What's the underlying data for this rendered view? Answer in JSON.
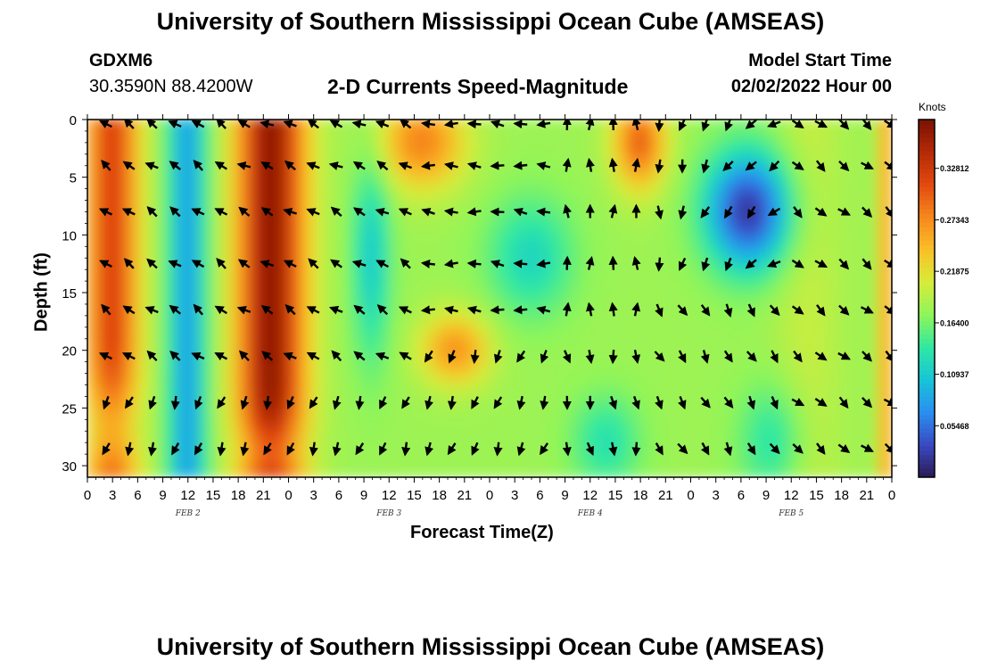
{
  "page": {
    "title_top": "University of Southern Mississippi Ocean Cube (AMSEAS)",
    "title_bottom": "University of Southern Mississippi Ocean Cube (AMSEAS)",
    "station_id": "GDXM6",
    "location": "30.3590N  88.4200W",
    "plot_title": "2-D Currents Speed-Magnitude",
    "model_start_label": "Model Start Time",
    "model_start_value": "02/02/2022 Hour 00"
  },
  "chart_data": {
    "type": "heatmap",
    "title": "2-D Currents Speed-Magnitude",
    "xlabel": "Forecast Time(Z)",
    "ylabel": "Depth (ft)",
    "x_ticks": [
      "0",
      "3",
      "6",
      "9",
      "12",
      "15",
      "18",
      "21",
      "0",
      "3",
      "6",
      "9",
      "12",
      "15",
      "18",
      "21",
      "0",
      "3",
      "6",
      "9",
      "12",
      "15",
      "18",
      "21",
      "0",
      "3",
      "6",
      "9",
      "12",
      "15",
      "18",
      "21",
      "0"
    ],
    "x_range_hours": [
      0,
      96
    ],
    "day_labels": [
      {
        "label": "FEB 2",
        "hour": 12
      },
      {
        "label": "FEB 3",
        "hour": 36
      },
      {
        "label": "FEB 4",
        "hour": 60
      },
      {
        "label": "FEB 5",
        "hour": 84
      }
    ],
    "y_ticks": [
      0,
      5,
      10,
      15,
      20,
      25,
      30
    ],
    "y_range_ft": [
      0,
      31
    ],
    "arrow_depths_ft": [
      0,
      4,
      8,
      12.5,
      16.5,
      20.5,
      24.5,
      28.5
    ],
    "colorbar": {
      "unit": "Knots",
      "ticks": [
        "0.32812",
        "0.27343",
        "0.21875",
        "0.16400",
        "0.10937",
        "0.05468"
      ],
      "tick_values": [
        0.32812,
        0.27343,
        0.21875,
        0.164,
        0.10937,
        0.05468
      ],
      "range": [
        0,
        0.38
      ],
      "colors": [
        "#2b1a52",
        "#3a49c2",
        "#2a8ef0",
        "#17c4d8",
        "#2fe8a2",
        "#8ef55a",
        "#d6ec3a",
        "#f9c028",
        "#f7881c",
        "#e34a10",
        "#b52a06",
        "#7a1204"
      ]
    }
  }
}
